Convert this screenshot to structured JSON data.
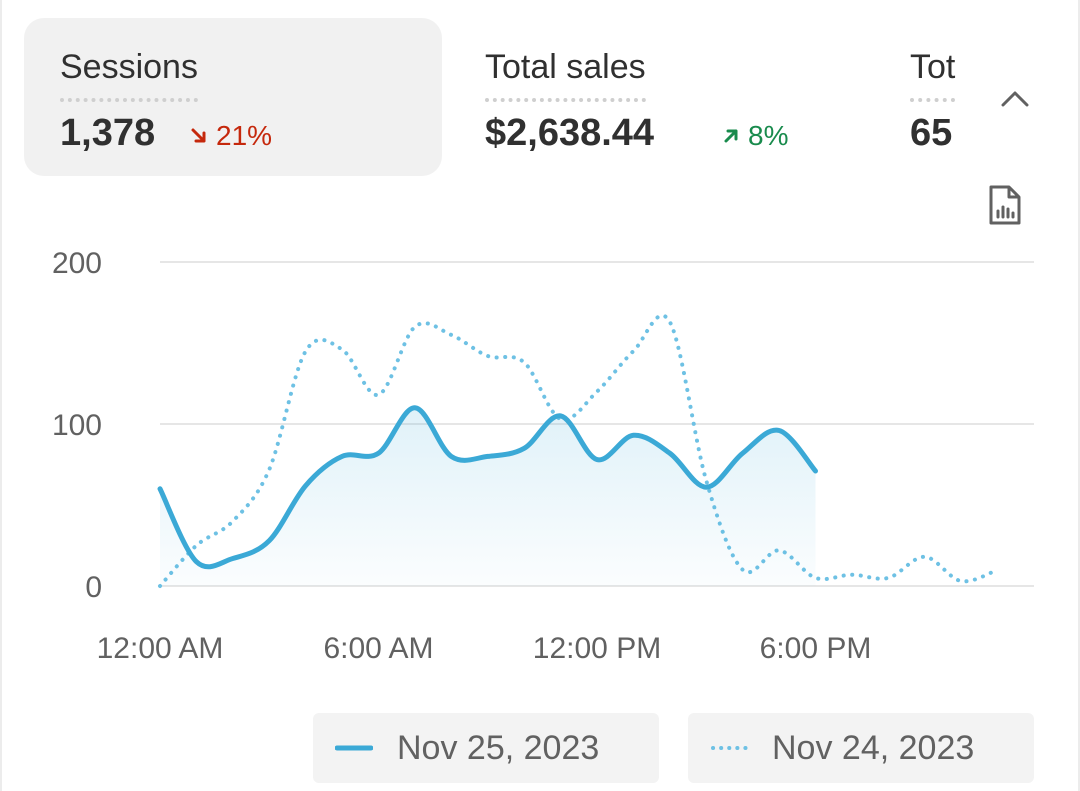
{
  "metrics": [
    {
      "label": "Sessions",
      "value": "1,378",
      "change": "21%",
      "direction": "down",
      "selected": true
    },
    {
      "label": "Total sales",
      "value": "$2,638.44",
      "change": "8%",
      "direction": "up",
      "selected": false
    },
    {
      "label": "Tot",
      "value": "65",
      "change": "",
      "direction": "",
      "selected": false
    }
  ],
  "icons": {
    "collapse": "chevron-up-icon",
    "report": "report-icon",
    "down_arrow": "arrow-down-right-icon",
    "up_arrow": "arrow-up-right-icon"
  },
  "colors": {
    "primary_series": "#3ba9d6",
    "comparison_series": "#6ec1e4",
    "decrease": "#c5280c",
    "increase": "#198b4d",
    "grid": "#e6e6e6"
  },
  "chart_data": {
    "type": "line",
    "x_unit": "hour of day",
    "xlim": [
      0,
      24
    ],
    "ylim": [
      0,
      200
    ],
    "y_ticks": [
      0,
      100,
      200
    ],
    "x_ticks": [
      {
        "value": 0,
        "label": "12:00 AM"
      },
      {
        "value": 6,
        "label": "6:00 AM"
      },
      {
        "value": 12,
        "label": "12:00 PM"
      },
      {
        "value": 18,
        "label": "6:00 PM"
      }
    ],
    "grid": true,
    "legend_position": "bottom",
    "series": [
      {
        "name": "Nov 25, 2023",
        "style": "solid",
        "area_fill": true,
        "points": [
          [
            0,
            60
          ],
          [
            1,
            15
          ],
          [
            2,
            17
          ],
          [
            3,
            28
          ],
          [
            4,
            62
          ],
          [
            5,
            80
          ],
          [
            6,
            82
          ],
          [
            7,
            110
          ],
          [
            8,
            80
          ],
          [
            9,
            80
          ],
          [
            10,
            85
          ],
          [
            11,
            105
          ],
          [
            12,
            78
          ],
          [
            13,
            93
          ],
          [
            14,
            82
          ],
          [
            15,
            61
          ],
          [
            16,
            82
          ],
          [
            17,
            96
          ],
          [
            18,
            71
          ]
        ]
      },
      {
        "name": "Nov 24, 2023",
        "style": "dotted",
        "area_fill": false,
        "points": [
          [
            0,
            0
          ],
          [
            1,
            25
          ],
          [
            2,
            40
          ],
          [
            3,
            72
          ],
          [
            4,
            145
          ],
          [
            5,
            146
          ],
          [
            6,
            118
          ],
          [
            7,
            160
          ],
          [
            8,
            155
          ],
          [
            9,
            142
          ],
          [
            10,
            138
          ],
          [
            11,
            103
          ],
          [
            12,
            120
          ],
          [
            13,
            145
          ],
          [
            14,
            163
          ],
          [
            15,
            65
          ],
          [
            16,
            10
          ],
          [
            17,
            22
          ],
          [
            18,
            5
          ],
          [
            19,
            7
          ],
          [
            20,
            5
          ],
          [
            21,
            18
          ],
          [
            22,
            3
          ],
          [
            23,
            10
          ]
        ]
      }
    ]
  }
}
